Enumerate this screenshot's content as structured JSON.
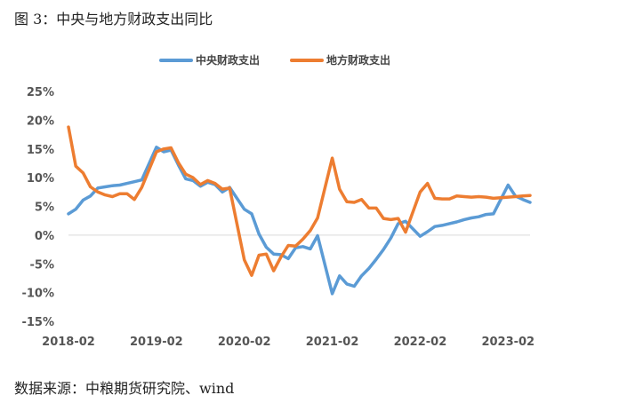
{
  "figure": {
    "title": "图 3：中央与地方财政支出同比",
    "source": "数据来源：中粮期货研究院、wind"
  },
  "chart_data": {
    "type": "line",
    "title": "",
    "xlabel": "",
    "ylabel": "",
    "ylim": [
      -0.15,
      0.25
    ],
    "yticks": [
      -0.15,
      -0.1,
      -0.05,
      0,
      0.05,
      0.1,
      0.15,
      0.2,
      0.25
    ],
    "ytick_labels": [
      "-15%",
      "-10%",
      "-5%",
      "0%",
      "5%",
      "10%",
      "15%",
      "20%",
      "25%"
    ],
    "x_start": "2018-02",
    "x_end": "2023-05",
    "xtick_labels": [
      "2018-02",
      "2019-02",
      "2020-02",
      "2021-02",
      "2022-02",
      "2023-02"
    ],
    "grid": false,
    "legend_position": "top",
    "series": [
      {
        "name": "中央财政支出",
        "color": "#5b9bd5",
        "points": [
          [
            "2018-02",
            0.037
          ],
          [
            "2018-03",
            0.045
          ],
          [
            "2018-04",
            0.061
          ],
          [
            "2018-05",
            0.068
          ],
          [
            "2018-06",
            0.082
          ],
          [
            "2018-07",
            0.084
          ],
          [
            "2018-08",
            0.086
          ],
          [
            "2018-09",
            0.087
          ],
          [
            "2018-10",
            0.09
          ],
          [
            "2018-11",
            0.093
          ],
          [
            "2018-12",
            0.096
          ],
          [
            "2019-02",
            0.153
          ],
          [
            "2019-03",
            0.145
          ],
          [
            "2019-04",
            0.148
          ],
          [
            "2019-05",
            0.122
          ],
          [
            "2019-06",
            0.098
          ],
          [
            "2019-07",
            0.095
          ],
          [
            "2019-08",
            0.085
          ],
          [
            "2019-09",
            0.092
          ],
          [
            "2019-10",
            0.088
          ],
          [
            "2019-11",
            0.075
          ],
          [
            "2019-12",
            0.083
          ],
          [
            "2020-02",
            0.045
          ],
          [
            "2020-03",
            0.037
          ],
          [
            "2020-04",
            0.002
          ],
          [
            "2020-05",
            -0.021
          ],
          [
            "2020-06",
            -0.033
          ],
          [
            "2020-07",
            -0.034
          ],
          [
            "2020-08",
            -0.041
          ],
          [
            "2020-09",
            -0.022
          ],
          [
            "2020-10",
            -0.02
          ],
          [
            "2020-11",
            -0.024
          ],
          [
            "2020-12",
            -0.001
          ],
          [
            "2021-02",
            -0.102
          ],
          [
            "2021-03",
            -0.071
          ],
          [
            "2021-04",
            -0.085
          ],
          [
            "2021-05",
            -0.089
          ],
          [
            "2021-06",
            -0.071
          ],
          [
            "2021-07",
            -0.058
          ],
          [
            "2021-08",
            -0.042
          ],
          [
            "2021-09",
            -0.025
          ],
          [
            "2021-10",
            -0.005
          ],
          [
            "2021-11",
            0.02
          ],
          [
            "2021-12",
            0.024
          ],
          [
            "2022-02",
            -0.002
          ],
          [
            "2022-03",
            0.006
          ],
          [
            "2022-04",
            0.015
          ],
          [
            "2022-05",
            0.017
          ],
          [
            "2022-06",
            0.02
          ],
          [
            "2022-07",
            0.023
          ],
          [
            "2022-08",
            0.027
          ],
          [
            "2022-09",
            0.03
          ],
          [
            "2022-10",
            0.032
          ],
          [
            "2022-11",
            0.036
          ],
          [
            "2022-12",
            0.037
          ],
          [
            "2023-02",
            0.087
          ],
          [
            "2023-03",
            0.068
          ],
          [
            "2023-04",
            0.062
          ],
          [
            "2023-05",
            0.057
          ]
        ]
      },
      {
        "name": "地方财政支出",
        "color": "#ed7d31",
        "points": [
          [
            "2018-02",
            0.188
          ],
          [
            "2018-03",
            0.12
          ],
          [
            "2018-04",
            0.108
          ],
          [
            "2018-05",
            0.084
          ],
          [
            "2018-06",
            0.075
          ],
          [
            "2018-07",
            0.07
          ],
          [
            "2018-08",
            0.067
          ],
          [
            "2018-09",
            0.072
          ],
          [
            "2018-10",
            0.072
          ],
          [
            "2018-11",
            0.062
          ],
          [
            "2018-12",
            0.083
          ],
          [
            "2019-02",
            0.145
          ],
          [
            "2019-03",
            0.15
          ],
          [
            "2019-04",
            0.152
          ],
          [
            "2019-05",
            0.126
          ],
          [
            "2019-06",
            0.106
          ],
          [
            "2019-07",
            0.1
          ],
          [
            "2019-08",
            0.088
          ],
          [
            "2019-09",
            0.095
          ],
          [
            "2019-10",
            0.09
          ],
          [
            "2019-11",
            0.08
          ],
          [
            "2019-12",
            0.082
          ],
          [
            "2020-02",
            -0.043
          ],
          [
            "2020-03",
            -0.07
          ],
          [
            "2020-04",
            -0.035
          ],
          [
            "2020-05",
            -0.033
          ],
          [
            "2020-06",
            -0.062
          ],
          [
            "2020-07",
            -0.038
          ],
          [
            "2020-08",
            -0.018
          ],
          [
            "2020-09",
            -0.019
          ],
          [
            "2020-10",
            -0.007
          ],
          [
            "2020-11",
            0.008
          ],
          [
            "2020-12",
            0.03
          ],
          [
            "2021-02",
            0.134
          ],
          [
            "2021-03",
            0.08
          ],
          [
            "2021-04",
            0.058
          ],
          [
            "2021-05",
            0.057
          ],
          [
            "2021-06",
            0.062
          ],
          [
            "2021-07",
            0.047
          ],
          [
            "2021-08",
            0.047
          ],
          [
            "2021-09",
            0.029
          ],
          [
            "2021-10",
            0.027
          ],
          [
            "2021-11",
            0.029
          ],
          [
            "2021-12",
            0.005
          ],
          [
            "2022-02",
            0.075
          ],
          [
            "2022-03",
            0.09
          ],
          [
            "2022-04",
            0.064
          ],
          [
            "2022-05",
            0.063
          ],
          [
            "2022-06",
            0.063
          ],
          [
            "2022-07",
            0.068
          ],
          [
            "2022-08",
            0.067
          ],
          [
            "2022-09",
            0.066
          ],
          [
            "2022-10",
            0.067
          ],
          [
            "2022-11",
            0.066
          ],
          [
            "2022-12",
            0.064
          ],
          [
            "2023-02",
            0.066
          ],
          [
            "2023-03",
            0.067
          ],
          [
            "2023-04",
            0.068
          ],
          [
            "2023-05",
            0.069
          ]
        ]
      }
    ]
  }
}
